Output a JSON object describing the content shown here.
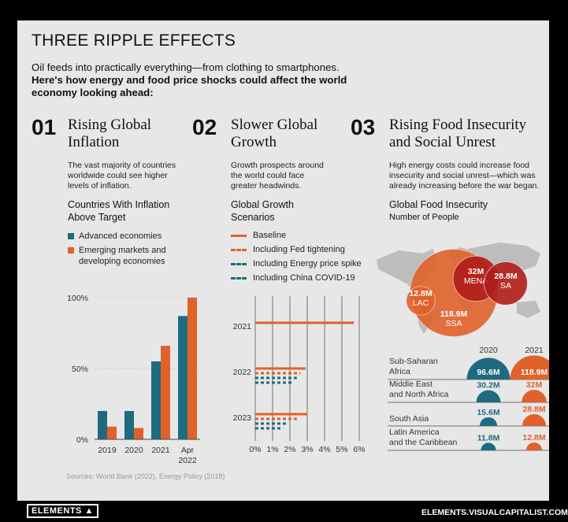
{
  "header": {
    "title": "THREE RIPPLE EFFECTS",
    "intro_line1": "Oil feeds into practically everything—from clothing to smartphones.",
    "intro_line2": "Here's how energy and food price shocks could affect the world",
    "intro_line3": "economy looking ahead:"
  },
  "sections": [
    {
      "number": "01",
      "title_line1": "Rising Global",
      "title_line2": "Inflation",
      "desc_line1": "The vast majority of countries",
      "desc_line2": "worldwide could see higher",
      "desc_line3": "levels of inflation.",
      "chart_title_line1": "Countries With Inflation",
      "chart_title_line2": "Above Target"
    },
    {
      "number": "02",
      "title_line1": "Slower Global",
      "title_line2": "Growth",
      "desc_line1": "Growth prospects around",
      "desc_line2": "the world  could face",
      "desc_line3": "greater headwinds.",
      "chart_title_line1": "Global Growth",
      "chart_title_line2": "Scenarios"
    },
    {
      "number": "03",
      "title_line1": "Rising Food Insecurity",
      "title_line2": "and Social Unrest",
      "desc_line1": "High energy costs could increase food",
      "desc_line2": "insecurity and social unrest—which was",
      "desc_line3": "already increasing before the war began.",
      "chart_title_line1": "Global Food Insecurity",
      "chart_title_line2": "Number of People"
    }
  ],
  "colors": {
    "teal": "#1e6b80",
    "orange": "#e0622a",
    "dark_red": "#b01d1a",
    "map": "#bdbdbd"
  },
  "chart_data": [
    {
      "type": "bar",
      "title": "Countries With Inflation Above Target",
      "categories": [
        "2019",
        "2020",
        "2021",
        "Apr 2022"
      ],
      "category_lines": [
        [
          "2019"
        ],
        [
          "2020"
        ],
        [
          "2021"
        ],
        [
          "Apr",
          "2022"
        ]
      ],
      "series": [
        {
          "name": "Advanced economies",
          "color": "#1e6b80",
          "values": [
            20,
            20,
            55,
            87
          ]
        },
        {
          "name": "Emerging markets and developing economies",
          "color": "#e0622a",
          "values": [
            9,
            8,
            66,
            100
          ]
        }
      ],
      "legend_labels": [
        [
          "Advanced economies"
        ],
        [
          "Emerging markets and",
          "developing economies"
        ]
      ],
      "yticks": [
        "100%",
        "50%",
        "0%"
      ],
      "ylim": [
        0,
        100
      ]
    },
    {
      "type": "bar",
      "orientation": "horizontal",
      "title": "Global Growth Scenarios",
      "categories": [
        "2021",
        "2022",
        "2023"
      ],
      "series": [
        {
          "name": "Baseline",
          "style": "solid",
          "color": "#e0622a",
          "values": [
            5.7,
            2.9,
            3.0
          ]
        },
        {
          "name": "Including Fed tightening",
          "style": "dashed",
          "color": "#e0622a",
          "values": [
            null,
            2.6,
            2.4
          ]
        },
        {
          "name": "Including Energy price spike",
          "style": "dashed",
          "color": "#1e6b80",
          "values": [
            null,
            2.4,
            1.9
          ]
        },
        {
          "name": "Including China COVID-19",
          "style": "dashed",
          "color": "#1e6b80",
          "values": [
            null,
            2.2,
            1.6
          ]
        }
      ],
      "xticks": [
        "0%",
        "1%",
        "2%",
        "3%",
        "4%",
        "5%",
        "6%"
      ],
      "xlim": [
        0,
        6
      ]
    },
    {
      "type": "bubble",
      "title": "Global Food Insecurity",
      "subtitle": "Number of People",
      "unit": "million people",
      "bubbles": [
        {
          "label": "MENA",
          "value_label": "32M",
          "value": 32
        },
        {
          "label": "SA",
          "value_label": "28.8M",
          "value": 28.8
        },
        {
          "label": "LAC",
          "value_label": "12.8M",
          "value": 12.8
        },
        {
          "label": "SSA",
          "value_label": "118.9M",
          "value": 118.9
        }
      ],
      "table_years": [
        "2020",
        "2021"
      ],
      "rows": [
        {
          "label_lines": [
            "Sub-Saharan",
            "Africa"
          ],
          "v2020": 96.6,
          "l2020": "96.6M",
          "v2021": 118.9,
          "l2021": "118.9M"
        },
        {
          "label_lines": [
            "Middle East",
            "and North Africa"
          ],
          "v2020": 30.2,
          "l2020": "30.2M",
          "v2021": 32,
          "l2021": "32M"
        },
        {
          "label_lines": [
            "South Asia"
          ],
          "v2020": 15.6,
          "l2020": "15.6M",
          "v2021": 28.8,
          "l2021": "28.8M"
        },
        {
          "label_lines": [
            "Latin America",
            "and the Caribbean"
          ],
          "v2020": 11.8,
          "l2020": "11.8M",
          "v2021": 12.8,
          "l2021": "12.8M"
        }
      ]
    }
  ],
  "sources": "Sources: World Bank (2022), Energy Policy (2018)",
  "footer": {
    "brand": "ELEMENTS",
    "url": "ELEMENTS.VISUALCAPITALIST.COM"
  }
}
